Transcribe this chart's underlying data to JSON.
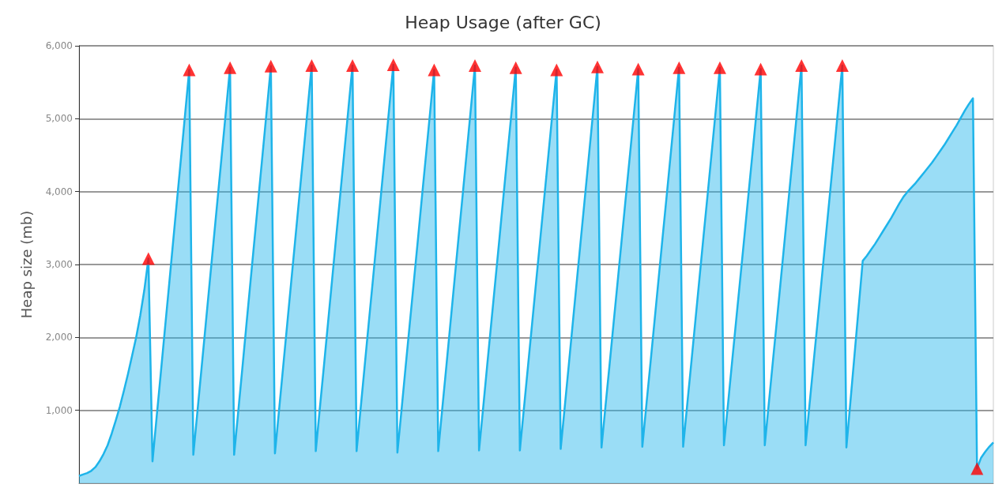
{
  "chart_data": {
    "type": "area",
    "title": "Heap Usage (after GC)",
    "ylabel": "Heap size (mb)",
    "ylim": [
      0,
      6000
    ],
    "yticks": [
      {
        "value": 1000,
        "label": "1,000"
      },
      {
        "value": 2000,
        "label": "2,000"
      },
      {
        "value": 3000,
        "label": "3,000"
      },
      {
        "value": 4000,
        "label": "4,000"
      },
      {
        "value": 5000,
        "label": "5,000"
      },
      {
        "value": 6000,
        "label": "6,000"
      }
    ],
    "grid": "y",
    "tick_labels": "y",
    "categories": [
      null,
      null,
      null,
      null,
      null,
      null,
      null,
      null,
      null,
      null,
      null,
      null,
      null,
      null,
      null,
      null,
      null,
      null,
      null,
      null,
      null,
      null,
      null,
      null,
      null,
      null,
      null,
      null,
      null,
      null,
      null,
      null,
      null,
      null,
      null,
      null,
      null,
      null,
      null,
      null,
      null,
      null,
      null,
      null,
      null,
      null,
      null,
      null,
      null,
      null,
      null,
      null,
      null,
      null,
      null,
      null,
      null,
      null,
      null,
      null,
      null,
      null,
      null,
      null,
      null,
      null,
      null,
      null,
      null,
      null,
      null,
      null,
      null,
      null,
      null,
      null,
      null,
      null,
      null,
      null,
      null,
      null,
      null,
      null,
      null,
      null,
      null,
      null,
      null,
      null,
      null,
      null,
      null,
      null,
      null,
      null,
      null,
      null,
      null,
      null,
      null,
      null,
      null,
      null,
      null,
      null,
      null,
      null,
      null,
      null,
      null,
      null,
      null,
      null,
      null,
      null,
      null,
      null,
      null,
      null,
      null,
      null,
      null,
      null,
      null,
      null,
      null,
      null,
      null,
      null,
      null,
      null,
      null,
      null,
      null,
      null,
      null,
      null,
      null,
      null,
      null,
      null,
      null,
      null,
      null,
      null,
      null,
      null,
      null,
      null,
      null,
      null,
      null,
      null,
      null,
      null,
      null,
      null,
      null,
      null,
      null,
      null,
      null,
      null,
      null,
      null,
      null,
      null,
      null,
      null,
      null,
      null,
      null,
      null,
      null,
      null,
      null,
      null,
      null,
      null,
      null,
      null,
      null,
      null,
      null,
      null,
      null,
      null,
      null,
      null,
      null,
      null,
      null,
      null,
      null,
      null,
      null,
      null,
      null,
      null,
      null,
      null,
      null,
      null,
      null,
      null,
      null,
      null,
      null,
      null,
      null,
      null,
      null,
      null,
      null,
      null,
      null,
      null,
      null,
      null,
      null,
      null,
      null,
      null,
      null
    ],
    "series": [
      {
        "color": "#1eb4ea",
        "marker": "none",
        "values": [
          100,
          120,
          140,
          170,
          220,
          300,
          400,
          520,
          680,
          860,
          1050,
          1270,
          1500,
          1750,
          2000,
          2300,
          2650,
          3080,
          300,
          900,
          1490,
          2090,
          2680,
          3280,
          3880,
          4470,
          5070,
          5670,
          390,
          980,
          1570,
          2160,
          2750,
          3340,
          3930,
          4520,
          5110,
          5700,
          390,
          980,
          1570,
          2170,
          2760,
          3350,
          3940,
          4530,
          5120,
          5720,
          410,
          1000,
          1590,
          2180,
          2770,
          3360,
          3950,
          4540,
          5130,
          5730,
          440,
          1030,
          1610,
          2200,
          2790,
          3380,
          3960,
          4550,
          5140,
          5730,
          440,
          1030,
          1620,
          2210,
          2790,
          3380,
          3970,
          4560,
          5150,
          5740,
          420,
          1000,
          1590,
          2170,
          2750,
          3330,
          3920,
          4500,
          5080,
          5670,
          440,
          1030,
          1610,
          2200,
          2790,
          3380,
          3960,
          4550,
          5140,
          5730,
          450,
          1030,
          1620,
          2200,
          2780,
          3360,
          3950,
          4530,
          5110,
          5700,
          450,
          1030,
          1610,
          2190,
          2770,
          3350,
          3930,
          4510,
          5090,
          5670,
          470,
          1050,
          1630,
          2220,
          2800,
          3380,
          3960,
          4540,
          5120,
          5710,
          490,
          1070,
          1640,
          2220,
          2790,
          3370,
          3950,
          4520,
          5100,
          5680,
          500,
          1080,
          1650,
          2230,
          2810,
          3390,
          3960,
          4540,
          5120,
          5700,
          500,
          1080,
          1650,
          2230,
          2810,
          3390,
          3960,
          4540,
          5120,
          5700,
          520,
          1090,
          1670,
          2240,
          2810,
          3380,
          3960,
          4530,
          5100,
          5680,
          520,
          1100,
          1680,
          2250,
          2830,
          3410,
          3990,
          4570,
          5150,
          5730,
          520,
          1100,
          1680,
          2250,
          2830,
          3410,
          3990,
          4570,
          5150,
          5730,
          490,
          1130,
          1770,
          2410,
          3050,
          3120,
          3200,
          3280,
          3370,
          3460,
          3550,
          3640,
          3740,
          3840,
          3930,
          4000,
          4060,
          4120,
          4190,
          4260,
          4330,
          4400,
          4480,
          4560,
          4640,
          4730,
          4820,
          4910,
          5010,
          5110,
          5200,
          5280,
          200,
          350,
          430,
          500,
          560
        ]
      },
      {
        "type": "scatter",
        "color": "#ff0000",
        "marker": "triangle",
        "values": [
          null,
          null,
          null,
          null,
          null,
          null,
          null,
          null,
          null,
          null,
          null,
          null,
          null,
          null,
          null,
          null,
          null,
          3080,
          null,
          null,
          null,
          null,
          null,
          null,
          null,
          null,
          null,
          5670,
          null,
          null,
          null,
          null,
          null,
          null,
          null,
          null,
          null,
          5700,
          null,
          null,
          null,
          null,
          null,
          null,
          null,
          null,
          null,
          5720,
          null,
          null,
          null,
          null,
          null,
          null,
          null,
          null,
          null,
          5730,
          null,
          null,
          null,
          null,
          null,
          null,
          null,
          null,
          null,
          5730,
          null,
          null,
          null,
          null,
          null,
          null,
          null,
          null,
          null,
          5740,
          null,
          null,
          null,
          null,
          null,
          null,
          null,
          null,
          null,
          5670,
          null,
          null,
          null,
          null,
          null,
          null,
          null,
          null,
          null,
          5730,
          null,
          null,
          null,
          null,
          null,
          null,
          null,
          null,
          null,
          5700,
          null,
          null,
          null,
          null,
          null,
          null,
          null,
          null,
          null,
          5670,
          null,
          null,
          null,
          null,
          null,
          null,
          null,
          null,
          null,
          5710,
          null,
          null,
          null,
          null,
          null,
          null,
          null,
          null,
          null,
          5680,
          null,
          null,
          null,
          null,
          null,
          null,
          null,
          null,
          null,
          5700,
          null,
          null,
          null,
          null,
          null,
          null,
          null,
          null,
          null,
          5700,
          null,
          null,
          null,
          null,
          null,
          null,
          null,
          null,
          null,
          5680,
          null,
          null,
          null,
          null,
          null,
          null,
          null,
          null,
          null,
          5730,
          null,
          null,
          null,
          null,
          null,
          null,
          null,
          null,
          null,
          5730,
          null,
          null,
          null,
          null,
          null,
          null,
          null,
          null,
          null,
          null,
          null,
          null,
          null,
          null,
          null,
          null,
          null,
          null,
          null,
          null,
          null,
          null,
          null,
          null,
          null,
          null,
          null,
          null,
          null,
          null,
          null,
          null,
          200,
          null,
          null,
          null,
          null
        ]
      }
    ]
  }
}
